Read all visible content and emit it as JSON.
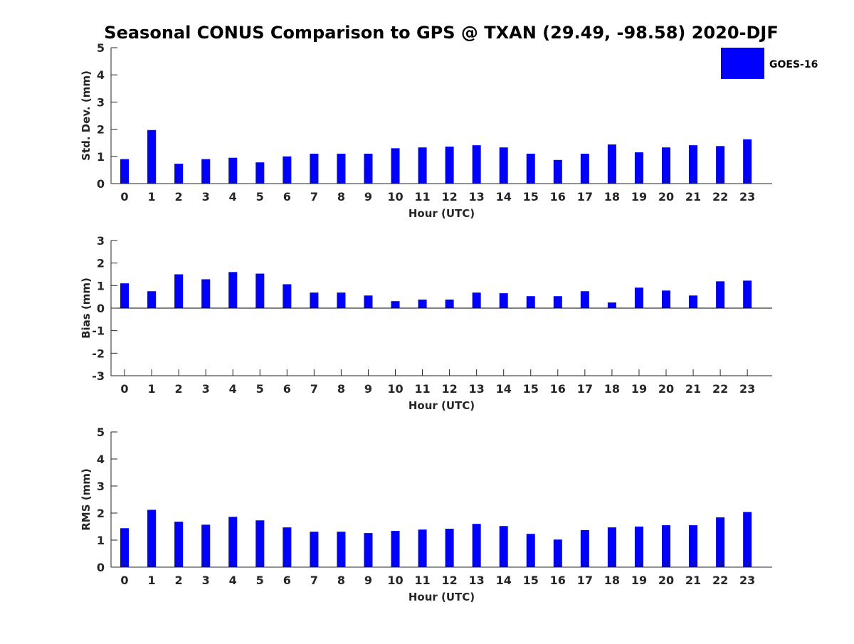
{
  "chart_data": {
    "title": "Seasonal CONUS Comparison to GPS @ TXAN (29.49, -98.58) 2020-DJF",
    "legend": {
      "label": "GOES-16",
      "color": "#0000ff",
      "placement": "top-right"
    },
    "bar_color": "#0000ff",
    "subplots": [
      {
        "type": "bar",
        "ylabel": "Std. Dev. (mm)",
        "xlabel": "Hour (UTC)",
        "ylim": [
          0,
          5
        ],
        "yticks": [
          0,
          1,
          2,
          3,
          4,
          5
        ],
        "categories": [
          "0",
          "1",
          "2",
          "3",
          "4",
          "5",
          "6",
          "7",
          "8",
          "9",
          "10",
          "11",
          "12",
          "13",
          "14",
          "15",
          "16",
          "17",
          "18",
          "19",
          "20",
          "21",
          "22",
          "23"
        ],
        "series": [
          {
            "name": "GOES-16",
            "values": [
              0.9,
              1.97,
              0.73,
              0.9,
              0.95,
              0.78,
              1.0,
              1.1,
              1.1,
              1.1,
              1.3,
              1.33,
              1.36,
              1.41,
              1.33,
              1.1,
              0.87,
              1.1,
              1.44,
              1.15,
              1.33,
              1.41,
              1.38,
              1.63
            ]
          }
        ]
      },
      {
        "type": "bar",
        "ylabel": "Bias (mm)",
        "xlabel": "Hour (UTC)",
        "ylim": [
          -3,
          3
        ],
        "yticks": [
          -3,
          -2,
          -1,
          0,
          1,
          2,
          3
        ],
        "categories": [
          "0",
          "1",
          "2",
          "3",
          "4",
          "5",
          "6",
          "7",
          "8",
          "9",
          "10",
          "11",
          "12",
          "13",
          "14",
          "15",
          "16",
          "17",
          "18",
          "19",
          "20",
          "21",
          "22",
          "23"
        ],
        "series": [
          {
            "name": "GOES-16",
            "values": [
              1.1,
              0.75,
              1.5,
              1.28,
              1.6,
              1.53,
              1.06,
              0.69,
              0.69,
              0.56,
              0.31,
              0.38,
              0.38,
              0.69,
              0.66,
              0.53,
              0.53,
              0.75,
              0.25,
              0.91,
              0.78,
              0.56,
              1.19,
              1.22
            ]
          }
        ]
      },
      {
        "type": "bar",
        "ylabel": "RMS (mm)",
        "xlabel": "Hour (UTC)",
        "ylim": [
          0,
          5
        ],
        "yticks": [
          0,
          1,
          2,
          3,
          4,
          5
        ],
        "categories": [
          "0",
          "1",
          "2",
          "3",
          "4",
          "5",
          "6",
          "7",
          "8",
          "9",
          "10",
          "11",
          "12",
          "13",
          "14",
          "15",
          "16",
          "17",
          "18",
          "19",
          "20",
          "21",
          "22",
          "23"
        ],
        "series": [
          {
            "name": "GOES-16",
            "values": [
              1.44,
              2.12,
              1.68,
              1.57,
              1.86,
              1.73,
              1.47,
              1.31,
              1.31,
              1.26,
              1.34,
              1.39,
              1.42,
              1.6,
              1.52,
              1.23,
              1.02,
              1.37,
              1.47,
              1.5,
              1.55,
              1.55,
              1.84,
              2.04
            ]
          }
        ]
      }
    ]
  }
}
